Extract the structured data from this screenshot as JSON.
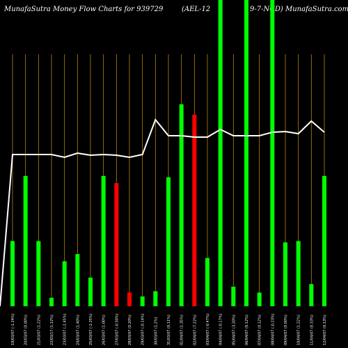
{
  "title": {
    "left": "MunafaSutra  Money Flow  Charts for 939729",
    "middle": "(AEL-12",
    "right": "9-7-NCD) MunafaSutra.com"
  },
  "chart_data": {
    "type": "bar",
    "title": "MunafaSutra  Money Flow  Charts for 939729 (AEL-12 9-7-NCD) MunafaSutra.com",
    "categories": [
      "19/03/07 (-1.24%)",
      "20/03/07 (0.00%)",
      "21/03/07 (1.22%)",
      "22/03/17 (1.12%)",
      "23/03/07 (-2.45%)",
      "24/03/07 (1.40%)",
      "25/03/07 (-2.25%)",
      "26/03/07 (1.00%)",
      "27/03/07 (-0.50%)",
      "28/03/07 (0.20%)",
      "29/03/07 (-0.14%)",
      "30/03/07 (1.2%)",
      "31/03/07 (0.11%)",
      "01/04/07 (1.35%)",
      "02/04/07 (7.22%)",
      "03/04/07 (-0.47%)",
      "04/04/07 (-0.17%)",
      "05/04/07 (3.20%)",
      "06/04/07 (0.12%)",
      "07/04/07 (0.12%)",
      "08/04/07 (-0.23%)",
      "09/04/07 (0.00%)",
      "10/04/07 (1.22%)",
      "11/04/07 (0.33%)",
      "12/04/07 (0.13%)",
      "13/04/07 (0.00%)"
    ],
    "series": [
      {
        "type": "bar",
        "values": [
          100,
          200,
          100,
          13,
          69,
          80,
          44,
          200,
          189,
          21,
          15,
          23,
          198,
          310,
          294,
          74,
          470,
          30,
          470,
          21,
          470,
          98,
          100,
          34,
          200,
          0
        ],
        "colors": [
          "green",
          "green",
          "green",
          "green",
          "green",
          "green",
          "green",
          "green",
          "red",
          "red",
          "green",
          "green",
          "green",
          "green",
          "red",
          "green",
          "green",
          "green",
          "green",
          "green",
          "green",
          "green",
          "green",
          "green",
          "green",
          "green"
        ]
      },
      {
        "type": "line",
        "values": [
          218,
          218,
          218,
          218,
          214,
          220,
          217,
          218,
          217,
          214,
          218,
          268,
          245,
          245,
          243,
          243,
          254,
          245,
          245,
          245,
          250,
          251,
          248,
          266,
          250,
          0
        ]
      }
    ],
    "ylim": [
      0,
      470
    ],
    "grid": "vertical",
    "colors": {
      "background": "#000000",
      "up": "#00ff00",
      "down": "#ff0000",
      "line": "#ffffff",
      "grid": "#b8860b",
      "label": "#ffffff"
    }
  }
}
